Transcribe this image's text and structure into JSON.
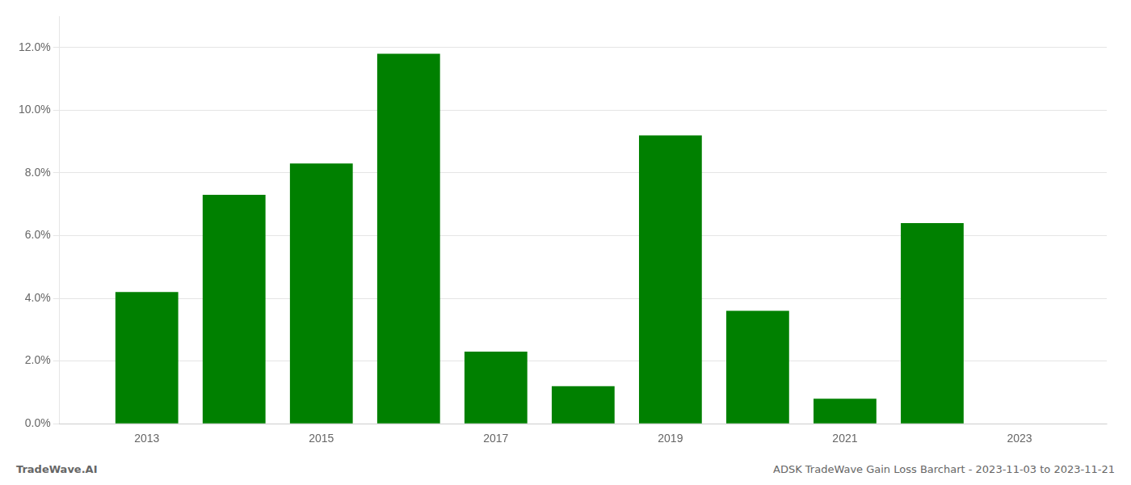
{
  "chart_data": {
    "type": "bar",
    "x": [
      2013,
      2014,
      2015,
      2016,
      2017,
      2018,
      2019,
      2020,
      2021,
      2022,
      2023
    ],
    "values": [
      0.042,
      0.073,
      0.083,
      0.118,
      0.023,
      0.012,
      0.092,
      0.036,
      0.008,
      0.064,
      0.0
    ],
    "color": "#008000",
    "xlim": [
      2012.0,
      2024.0
    ],
    "xticks": [
      2013,
      2015,
      2017,
      2019,
      2021,
      2023
    ],
    "ylim": [
      0.0,
      0.13
    ],
    "yticks": [
      {
        "value": 0.0,
        "label": "0.0%"
      },
      {
        "value": 0.02,
        "label": "2.0%"
      },
      {
        "value": 0.04,
        "label": "4.0%"
      },
      {
        "value": 0.06,
        "label": "6.0%"
      },
      {
        "value": 0.08,
        "label": "8.0%"
      },
      {
        "value": 0.1,
        "label": "10.0%"
      },
      {
        "value": 0.12,
        "label": "12.0%"
      }
    ],
    "grid": true,
    "annotations": [
      "TradeWave.AI",
      "ADSK TradeWave Gain Loss Barchart - 2023-11-03 to 2023-11-21"
    ]
  }
}
